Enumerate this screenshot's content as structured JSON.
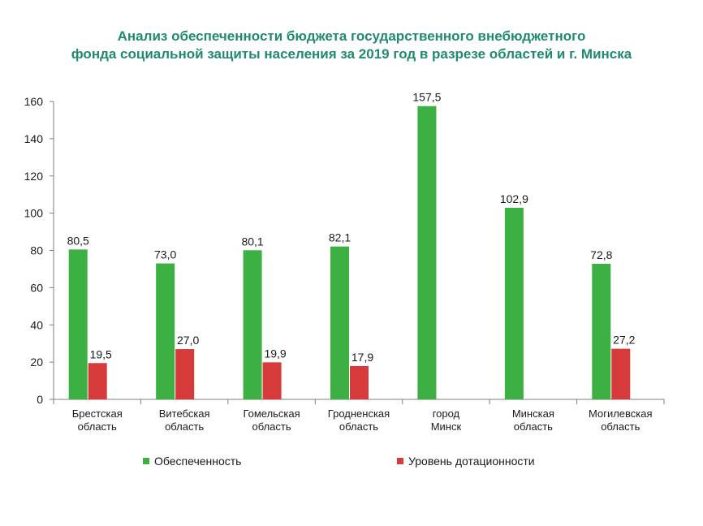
{
  "chart_data": {
    "type": "bar",
    "title_lines": [
      "Анализ  обеспеченности бюджета государственного внебюджетного",
      "фонда социальной защиты населения за 2019 год в разрезе областей и г. Минска"
    ],
    "categories": [
      [
        "Брестская",
        "область"
      ],
      [
        "Витебская",
        "область"
      ],
      [
        "Гомельская",
        "область"
      ],
      [
        "Гродненская",
        "область"
      ],
      [
        "город",
        "Минск"
      ],
      [
        "Минская",
        "область"
      ],
      [
        "Могилевская",
        "область"
      ]
    ],
    "series": [
      {
        "name": "Обеспеченность",
        "color": "#3cb043",
        "values": [
          80.5,
          73.0,
          80.1,
          82.1,
          157.5,
          102.9,
          72.8
        ],
        "labels": [
          "80,5",
          "73,0",
          "80,1",
          "82,1",
          "157,5",
          "102,9",
          "72,8"
        ]
      },
      {
        "name": "Уровень дотационности",
        "color": "#d63a3a",
        "values": [
          19.5,
          27.0,
          19.9,
          17.9,
          null,
          null,
          27.2
        ],
        "labels": [
          "19,5",
          "27,0",
          "19,9",
          "17,9",
          "",
          "",
          "27,2"
        ]
      }
    ],
    "ylim": [
      0,
      160
    ],
    "yticks": [
      0,
      20,
      40,
      60,
      80,
      100,
      120,
      140,
      160
    ],
    "grid": false,
    "legend_position": "bottom"
  }
}
